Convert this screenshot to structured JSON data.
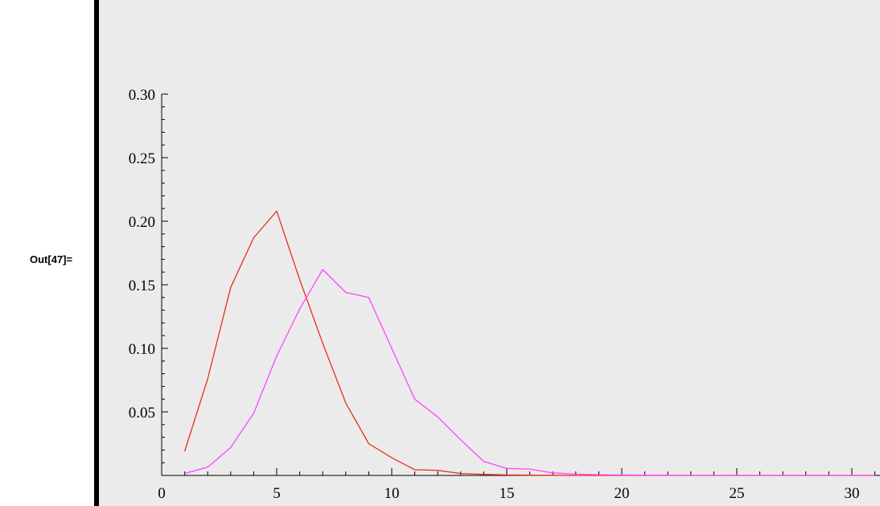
{
  "cell": {
    "out_label": "Out[47]="
  },
  "chart_data": {
    "type": "line",
    "title": "",
    "xlabel": "",
    "ylabel": "",
    "xlim": [
      0,
      31
    ],
    "ylim": [
      0,
      0.3
    ],
    "x_ticks": [
      0,
      5,
      10,
      15,
      20,
      25,
      30
    ],
    "x_tick_labels": [
      "0",
      "5",
      "10",
      "15",
      "20",
      "25",
      "30"
    ],
    "y_ticks": [
      0.05,
      0.1,
      0.15,
      0.2,
      0.25,
      0.3
    ],
    "y_tick_labels": [
      "0.05",
      "0.10",
      "0.15",
      "0.20",
      "0.25",
      "0.30"
    ],
    "background": "#ebebeb",
    "grid": false,
    "series": [
      {
        "color": "#e8301a",
        "x": [
          1,
          2,
          3,
          4,
          5,
          6,
          7,
          8,
          9,
          10,
          11,
          12,
          13,
          14,
          15,
          16,
          17,
          18,
          19,
          20,
          21,
          22,
          23,
          24,
          25,
          26,
          27,
          28,
          29,
          30,
          31
        ],
        "y": [
          0.019,
          0.076,
          0.148,
          0.187,
          0.208,
          0.154,
          0.104,
          0.057,
          0.025,
          0.014,
          0.0045,
          0.004,
          0.0015,
          0.0008,
          0.0004,
          0.0002,
          0.0001,
          0,
          0,
          0,
          0,
          0,
          0,
          0,
          0,
          0,
          0,
          0,
          0,
          0,
          0
        ]
      },
      {
        "color": "#ff44ff",
        "x": [
          1,
          2,
          3,
          4,
          5,
          6,
          7,
          8,
          9,
          10,
          11,
          12,
          13,
          14,
          15,
          16,
          17,
          18,
          19,
          20,
          21,
          22,
          23,
          24,
          25,
          26,
          27,
          28,
          29,
          30,
          31
        ],
        "y": [
          0.0015,
          0.0065,
          0.022,
          0.049,
          0.094,
          0.131,
          0.162,
          0.144,
          0.14,
          0.1,
          0.06,
          0.046,
          0.028,
          0.011,
          0.0055,
          0.005,
          0.002,
          0.001,
          0.0006,
          0.0003,
          0.0002,
          0.0001,
          0,
          0,
          0,
          0,
          0,
          0,
          0,
          0,
          0
        ]
      }
    ]
  }
}
